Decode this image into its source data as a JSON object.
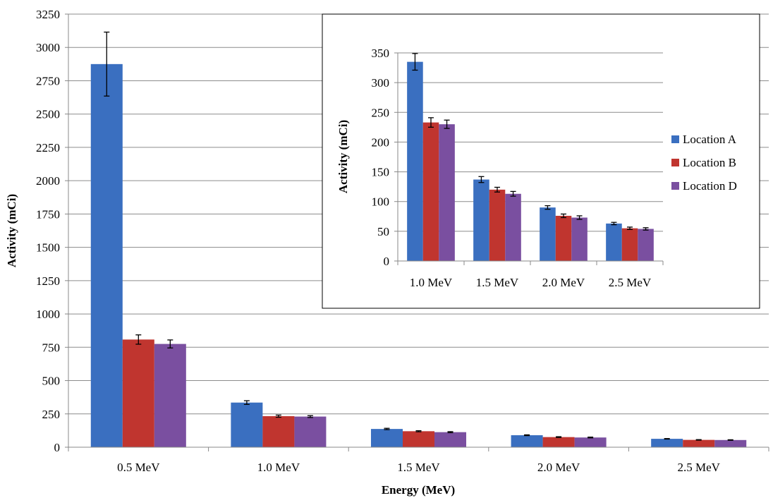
{
  "chart_data": [
    {
      "type": "bar",
      "xlabel": "Energy (MeV)",
      "ylabel": "Activity (mCi)",
      "ylim": [
        0,
        3250
      ],
      "yticks": [
        0,
        250,
        500,
        750,
        1000,
        1250,
        1500,
        1750,
        2000,
        2250,
        2500,
        2750,
        3000,
        3250
      ],
      "grid": true,
      "categories": [
        "0.5 MeV",
        "1.0 MeV",
        "1.5 MeV",
        "2.0 MeV",
        "2.5 MeV"
      ],
      "series": [
        {
          "name": "Location A",
          "values": [
            2875,
            335,
            137,
            90,
            63
          ],
          "errors": [
            240,
            14,
            5,
            3,
            2
          ]
        },
        {
          "name": "Location B",
          "values": [
            808,
            233,
            120,
            76,
            55
          ],
          "errors": [
            35,
            8,
            4,
            3,
            2
          ]
        },
        {
          "name": "Location D",
          "values": [
            775,
            230,
            113,
            73,
            54
          ],
          "errors": [
            30,
            7,
            4,
            3,
            2
          ]
        }
      ]
    },
    {
      "type": "bar",
      "ylabel": "Activity (mCi)",
      "ylim": [
        0,
        350
      ],
      "yticks": [
        0,
        50,
        100,
        150,
        200,
        250,
        300,
        350
      ],
      "grid": true,
      "legend": "right",
      "categories": [
        "1.0 MeV",
        "1.5 MeV",
        "2.0 MeV",
        "2.5 MeV"
      ],
      "series": [
        {
          "name": "Location A",
          "values": [
            335,
            137,
            90,
            63
          ],
          "errors": [
            14,
            5,
            3,
            2
          ]
        },
        {
          "name": "Location B",
          "values": [
            233,
            120,
            76,
            55
          ],
          "errors": [
            8,
            4,
            3,
            2
          ]
        },
        {
          "name": "Location D",
          "values": [
            230,
            113,
            73,
            54
          ],
          "errors": [
            7,
            4,
            3,
            2
          ]
        }
      ]
    }
  ],
  "colors": {
    "Location A": "#3a6fc0",
    "Location B": "#c0352f",
    "Location D": "#7a4fa0"
  }
}
